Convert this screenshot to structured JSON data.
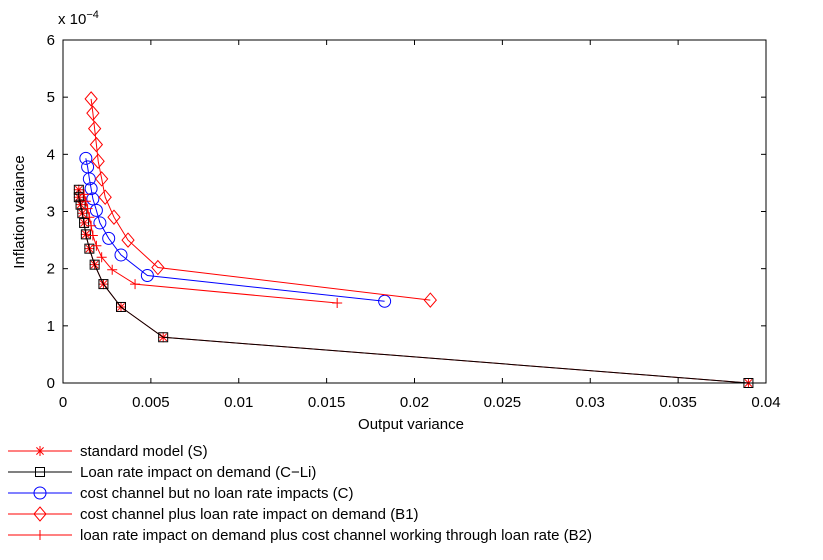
{
  "chart_data": {
    "type": "line",
    "xlabel": "Output variance",
    "ylabel": "Inflation variance",
    "y_scale_label": "x 10",
    "y_scale_exponent": "−4",
    "xlim": [
      0,
      0.04
    ],
    "ylim": [
      0,
      6
    ],
    "x_ticks": [
      "0",
      "0.005",
      "0.01",
      "0.015",
      "0.02",
      "0.025",
      "0.03",
      "0.035",
      "0.04"
    ],
    "y_ticks": [
      "0",
      "1",
      "2",
      "3",
      "4",
      "5",
      "6"
    ],
    "grid": false,
    "legend_position": "below-left",
    "series": [
      {
        "name": "standard model (S)",
        "color": "#ff0000",
        "marker": "asterisk",
        "points": [
          [
            0.039,
            0.0
          ],
          [
            0.0057,
            0.8
          ],
          [
            0.0033,
            1.33
          ],
          [
            0.0023,
            1.73
          ],
          [
            0.0018,
            2.07
          ],
          [
            0.0015,
            2.35
          ],
          [
            0.0013,
            2.6
          ],
          [
            0.0012,
            2.8
          ],
          [
            0.0011,
            2.97
          ],
          [
            0.001,
            3.12
          ],
          [
            0.0009,
            3.25
          ],
          [
            0.0009,
            3.38
          ]
        ]
      },
      {
        "name": "Loan rate impact on demand (C−Li)",
        "color": "#000000",
        "marker": "square",
        "points": [
          [
            0.039,
            0.0
          ],
          [
            0.0057,
            0.8
          ],
          [
            0.0033,
            1.33
          ],
          [
            0.0023,
            1.73
          ],
          [
            0.0018,
            2.07
          ],
          [
            0.0015,
            2.35
          ],
          [
            0.0013,
            2.6
          ],
          [
            0.0012,
            2.8
          ],
          [
            0.0011,
            2.97
          ],
          [
            0.001,
            3.12
          ],
          [
            0.0009,
            3.25
          ],
          [
            0.0009,
            3.38
          ]
        ]
      },
      {
        "name": "cost channel but no loan rate impacts (C)",
        "color": "#0000ff",
        "marker": "circle",
        "points": [
          [
            0.0183,
            1.43
          ],
          [
            0.0048,
            1.88
          ],
          [
            0.0033,
            2.24
          ],
          [
            0.0026,
            2.53
          ],
          [
            0.0021,
            2.8
          ],
          [
            0.0019,
            3.02
          ],
          [
            0.0017,
            3.22
          ],
          [
            0.0016,
            3.4
          ],
          [
            0.0015,
            3.57
          ],
          [
            0.0014,
            3.78
          ],
          [
            0.0013,
            3.93
          ]
        ]
      },
      {
        "name": "cost channel plus loan rate impact on demand (B1)",
        "color": "#ff0000",
        "marker": "diamond",
        "points": [
          [
            0.0209,
            1.45
          ],
          [
            0.0054,
            2.02
          ],
          [
            0.0037,
            2.5
          ],
          [
            0.0029,
            2.9
          ],
          [
            0.0024,
            3.25
          ],
          [
            0.0022,
            3.57
          ],
          [
            0.002,
            3.88
          ],
          [
            0.0019,
            4.17
          ],
          [
            0.0018,
            4.45
          ],
          [
            0.0017,
            4.72
          ],
          [
            0.0016,
            4.97
          ]
        ]
      },
      {
        "name": "loan rate impact on demand plus cost channel working through loan rate (B2)",
        "color": "#ff0000",
        "marker": "plus",
        "points": [
          [
            0.0156,
            1.4
          ],
          [
            0.0041,
            1.73
          ],
          [
            0.0028,
            1.98
          ],
          [
            0.0022,
            2.2
          ],
          [
            0.0019,
            2.4
          ],
          [
            0.0017,
            2.58
          ],
          [
            0.0016,
            2.75
          ],
          [
            0.0015,
            2.9
          ],
          [
            0.0014,
            3.05
          ],
          [
            0.0013,
            3.18
          ],
          [
            0.0012,
            3.3
          ]
        ]
      }
    ]
  }
}
